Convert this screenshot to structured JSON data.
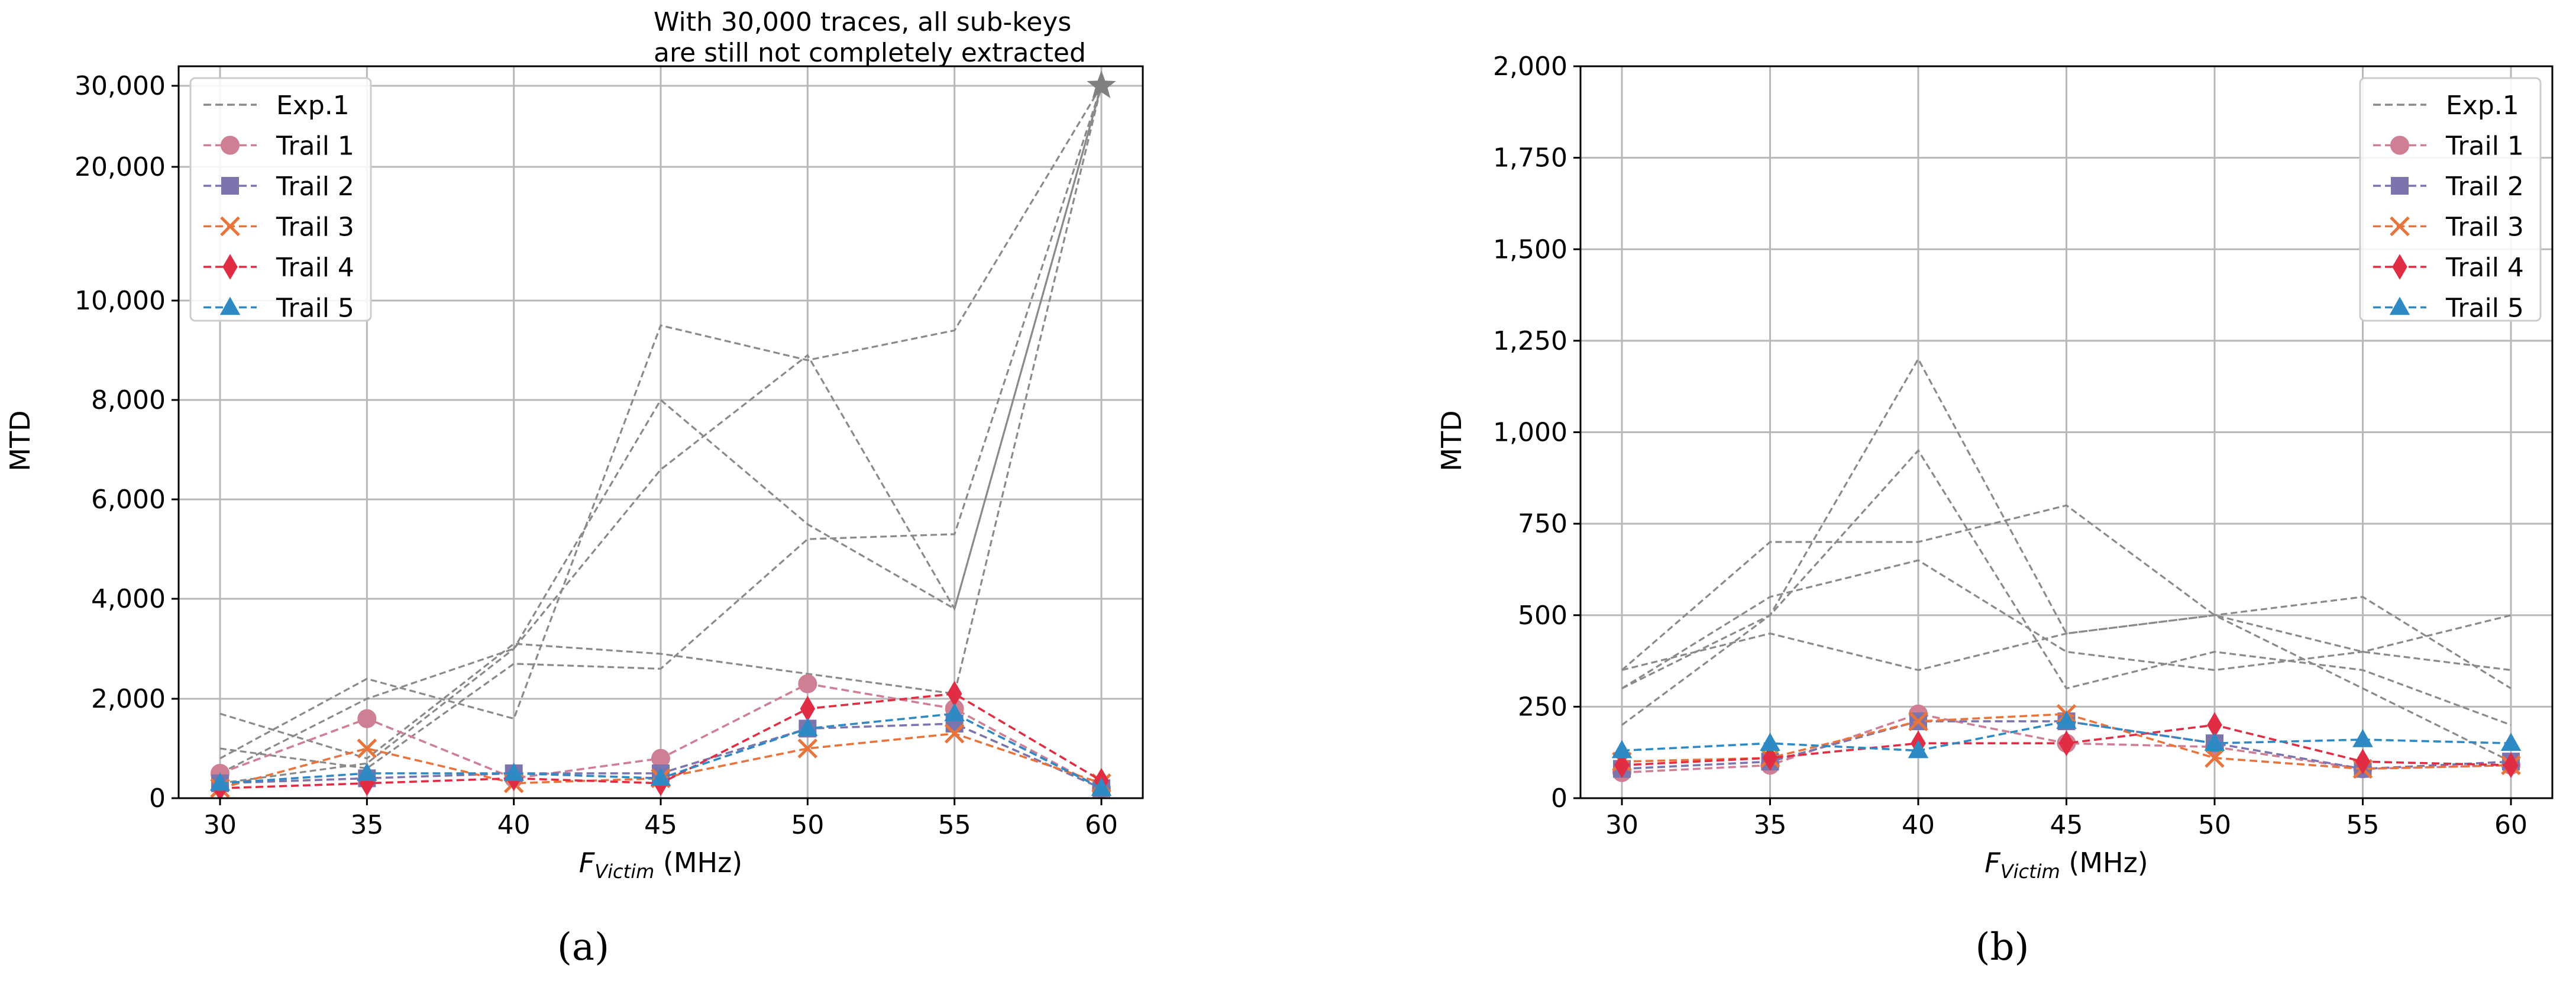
{
  "colors": {
    "exp": "#8a8a8a",
    "Trail 1": "#cf7f94",
    "Trail 2": "#7b74ad",
    "Trail 3": "#e8743b",
    "Trail 4": "#e02d43",
    "Trail 5": "#2f8ac4",
    "grid": "#b8b8b8",
    "star": "#808080"
  },
  "chart_data": [
    {
      "type": "line",
      "caption": "(a)",
      "ylabel": "MTD",
      "xlabel_main": "F",
      "xlabel_sub": "Victim",
      "xlabel_unit": " (MHz)",
      "x": [
        30,
        35,
        40,
        45,
        50,
        55,
        60
      ],
      "xticks": [
        "30",
        "35",
        "40",
        "45",
        "50",
        "55",
        "60"
      ],
      "ylim": [
        0,
        30000
      ],
      "yscale": "piecewise",
      "yticks": [
        0,
        2000,
        4000,
        6000,
        8000,
        10000,
        20000,
        30000
      ],
      "ytick_labels": [
        "0",
        "2,000",
        "4,000",
        "6,000",
        "8,000",
        "10,000",
        "20,000",
        "30,000"
      ],
      "grid": true,
      "legend_position": "top-left",
      "legend": [
        {
          "label": "Exp.1",
          "marker": "none"
        },
        {
          "label": "Trail 1",
          "marker": "circle"
        },
        {
          "label": "Trail 2",
          "marker": "square"
        },
        {
          "label": "Trail 3",
          "marker": "x"
        },
        {
          "label": "Trail 4",
          "marker": "diamond"
        },
        {
          "label": "Trail 5",
          "marker": "triangle"
        }
      ],
      "annotation": {
        "lines": [
          "With 30,000 traces, all sub-keys",
          "are still not completely extracted"
        ],
        "point": {
          "x": 60,
          "y": 30000
        }
      },
      "background_series": [
        [
          1700,
          800,
          3100,
          2900,
          2500,
          2100,
          30000
        ],
        [
          1000,
          600,
          2700,
          2600,
          5200,
          5300,
          30000
        ],
        [
          800,
          2400,
          1600,
          9500,
          8800,
          9400,
          30000
        ],
        [
          500,
          2000,
          3000,
          6600,
          8900,
          3800,
          30000
        ],
        [
          300,
          700,
          3000,
          8000,
          5500,
          3800,
          30000
        ]
      ],
      "series": [
        {
          "name": "Trail 1",
          "values": [
            500,
            1600,
            400,
            800,
            2300,
            1800,
            200
          ]
        },
        {
          "name": "Trail 2",
          "values": [
            300,
            400,
            500,
            500,
            1400,
            1500,
            200
          ]
        },
        {
          "name": "Trail 3",
          "values": [
            200,
            1000,
            300,
            400,
            1000,
            1300,
            300
          ]
        },
        {
          "name": "Trail 4",
          "values": [
            200,
            300,
            400,
            300,
            1800,
            2100,
            350
          ]
        },
        {
          "name": "Trail 5",
          "values": [
            300,
            500,
            500,
            400,
            1400,
            1700,
            200
          ]
        }
      ]
    },
    {
      "type": "line",
      "caption": "(b)",
      "ylabel": "MTD",
      "xlabel_main": "F",
      "xlabel_sub": "Victim",
      "xlabel_unit": " (MHz)",
      "x": [
        30,
        35,
        40,
        45,
        50,
        55,
        60
      ],
      "xticks": [
        "30",
        "35",
        "40",
        "45",
        "50",
        "55",
        "60"
      ],
      "ylim": [
        0,
        2000
      ],
      "yscale": "linear",
      "yticks": [
        0,
        250,
        500,
        750,
        1000,
        1250,
        1500,
        1750,
        2000
      ],
      "ytick_labels": [
        "0",
        "250",
        "500",
        "750",
        "1,000",
        "1,250",
        "1,500",
        "1,750",
        "2,000"
      ],
      "grid": true,
      "legend_position": "top-right",
      "legend": [
        {
          "label": "Exp.1",
          "marker": "none"
        },
        {
          "label": "Trail 1",
          "marker": "circle"
        },
        {
          "label": "Trail 2",
          "marker": "square"
        },
        {
          "label": "Trail 3",
          "marker": "x"
        },
        {
          "label": "Trail 4",
          "marker": "diamond"
        },
        {
          "label": "Trail 5",
          "marker": "triangle"
        }
      ],
      "background_series": [
        [
          350,
          700,
          700,
          800,
          500,
          400,
          350
        ],
        [
          350,
          450,
          350,
          450,
          500,
          550,
          300
        ],
        [
          300,
          550,
          650,
          400,
          350,
          400,
          500
        ],
        [
          200,
          500,
          1200,
          450,
          500,
          300,
          100
        ],
        [
          300,
          500,
          950,
          300,
          400,
          350,
          200
        ]
      ],
      "series": [
        {
          "name": "Trail 1",
          "values": [
            70,
            90,
            230,
            150,
            140,
            80,
            90
          ]
        },
        {
          "name": "Trail 2",
          "values": [
            80,
            100,
            210,
            210,
            150,
            80,
            100
          ]
        },
        {
          "name": "Trail 3",
          "values": [
            100,
            110,
            210,
            230,
            110,
            80,
            90
          ]
        },
        {
          "name": "Trail 4",
          "values": [
            90,
            110,
            150,
            150,
            200,
            100,
            90
          ]
        },
        {
          "name": "Trail 5",
          "values": [
            130,
            150,
            130,
            210,
            150,
            160,
            150
          ]
        }
      ]
    }
  ]
}
